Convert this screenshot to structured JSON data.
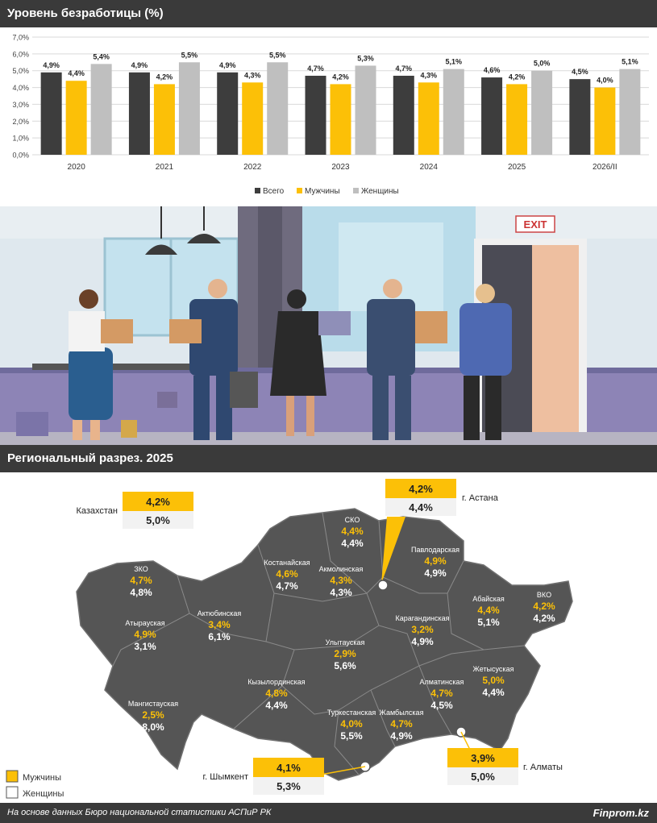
{
  "header": {
    "title": "Уровень безработицы (%)"
  },
  "chart_data": {
    "type": "bar",
    "title": "Уровень безработицы (%)",
    "categories": [
      "2020",
      "2021",
      "2022",
      "2023",
      "2024",
      "2025",
      "2026/II"
    ],
    "series": [
      {
        "name": "Всего",
        "color": "#3d3d3d",
        "values": [
          4.9,
          4.9,
          4.9,
          4.7,
          4.7,
          4.6,
          4.5
        ],
        "labels": [
          "4,9%",
          "4,9%",
          "4,9%",
          "4,7%",
          "4,7%",
          "4,6%",
          "4,5%"
        ]
      },
      {
        "name": "Мужчины",
        "color": "#fcc007",
        "values": [
          4.4,
          4.2,
          4.3,
          4.2,
          4.3,
          4.2,
          4.0
        ],
        "labels": [
          "4,4%",
          "4,2%",
          "4,3%",
          "4,2%",
          "4,3%",
          "4,2%",
          "4,0%"
        ]
      },
      {
        "name": "Женщины",
        "color": "#bfbfbf",
        "values": [
          5.4,
          5.5,
          5.5,
          5.3,
          5.1,
          5.0,
          5.1
        ],
        "labels": [
          "5,4%",
          "5,5%",
          "5,5%",
          "5,3%",
          "5,1%",
          "5,0%",
          "5,1%"
        ]
      }
    ],
    "ylim": [
      0,
      7
    ],
    "yticks": [
      "0,0%",
      "1,0%",
      "2,0%",
      "3,0%",
      "4,0%",
      "5,0%",
      "6,0%",
      "7,0%"
    ],
    "grid": true,
    "legend_position": "bottom"
  },
  "regional": {
    "title": "Региональный разрез. 2025",
    "kazakhstan": {
      "label": "Казахстан",
      "men": "4,2%",
      "women": "5,0%"
    },
    "cities": [
      {
        "id": "astana",
        "label": "г. Астана",
        "men": "4,2%",
        "women": "4,4%"
      },
      {
        "id": "almaty",
        "label": "г. Алматы",
        "men": "3,9%",
        "women": "5,0%"
      },
      {
        "id": "shymkent",
        "label": "г. Шымкент",
        "men": "4,1%",
        "women": "5,3%"
      }
    ],
    "regions": [
      {
        "name": "СКО",
        "men": "4,4%",
        "women": "4,4%"
      },
      {
        "name": "Павлодарская",
        "men": "4,9%",
        "women": "4,9%"
      },
      {
        "name": "Костанайская",
        "men": "4,6%",
        "women": "4,7%"
      },
      {
        "name": "Акмолинская",
        "men": "4,3%",
        "women": "4,3%"
      },
      {
        "name": "ЗКО",
        "men": "4,7%",
        "women": "4,8%"
      },
      {
        "name": "Актюбинская",
        "men": "3,4%",
        "women": "6,1%"
      },
      {
        "name": "Атырауская",
        "men": "4,9%",
        "women": "3,1%"
      },
      {
        "name": "Абайская",
        "men": "4,4%",
        "women": "5,1%"
      },
      {
        "name": "ВКО",
        "men": "4,2%",
        "women": "4,2%"
      },
      {
        "name": "Карагандинская",
        "men": "3,2%",
        "women": "4,9%"
      },
      {
        "name": "Улытауская",
        "men": "2,9%",
        "women": "5,6%"
      },
      {
        "name": "Жетысуская",
        "men": "5,0%",
        "women": "4,4%"
      },
      {
        "name": "Кызылординская",
        "men": "4,8%",
        "women": "4,4%"
      },
      {
        "name": "Алматинская",
        "men": "4,7%",
        "women": "4,5%"
      },
      {
        "name": "Мангистауская",
        "men": "2,5%",
        "women": "8,0%"
      },
      {
        "name": "Туркестанская",
        "men": "4,0%",
        "women": "5,5%"
      },
      {
        "name": "Жамбылская",
        "men": "4,7%",
        "women": "4,9%"
      }
    ],
    "legend": {
      "men": "Мужчины",
      "women": "Женщины"
    },
    "colors": {
      "men": "#fcc007",
      "women_box": "#f2f2f2",
      "map": "#555555"
    }
  },
  "scene": {
    "exit_sign": "EXIT"
  },
  "footer": {
    "source": "На основе данных Бюро национальной статистики АСПиР РК",
    "brand": "Finprom.kz"
  }
}
